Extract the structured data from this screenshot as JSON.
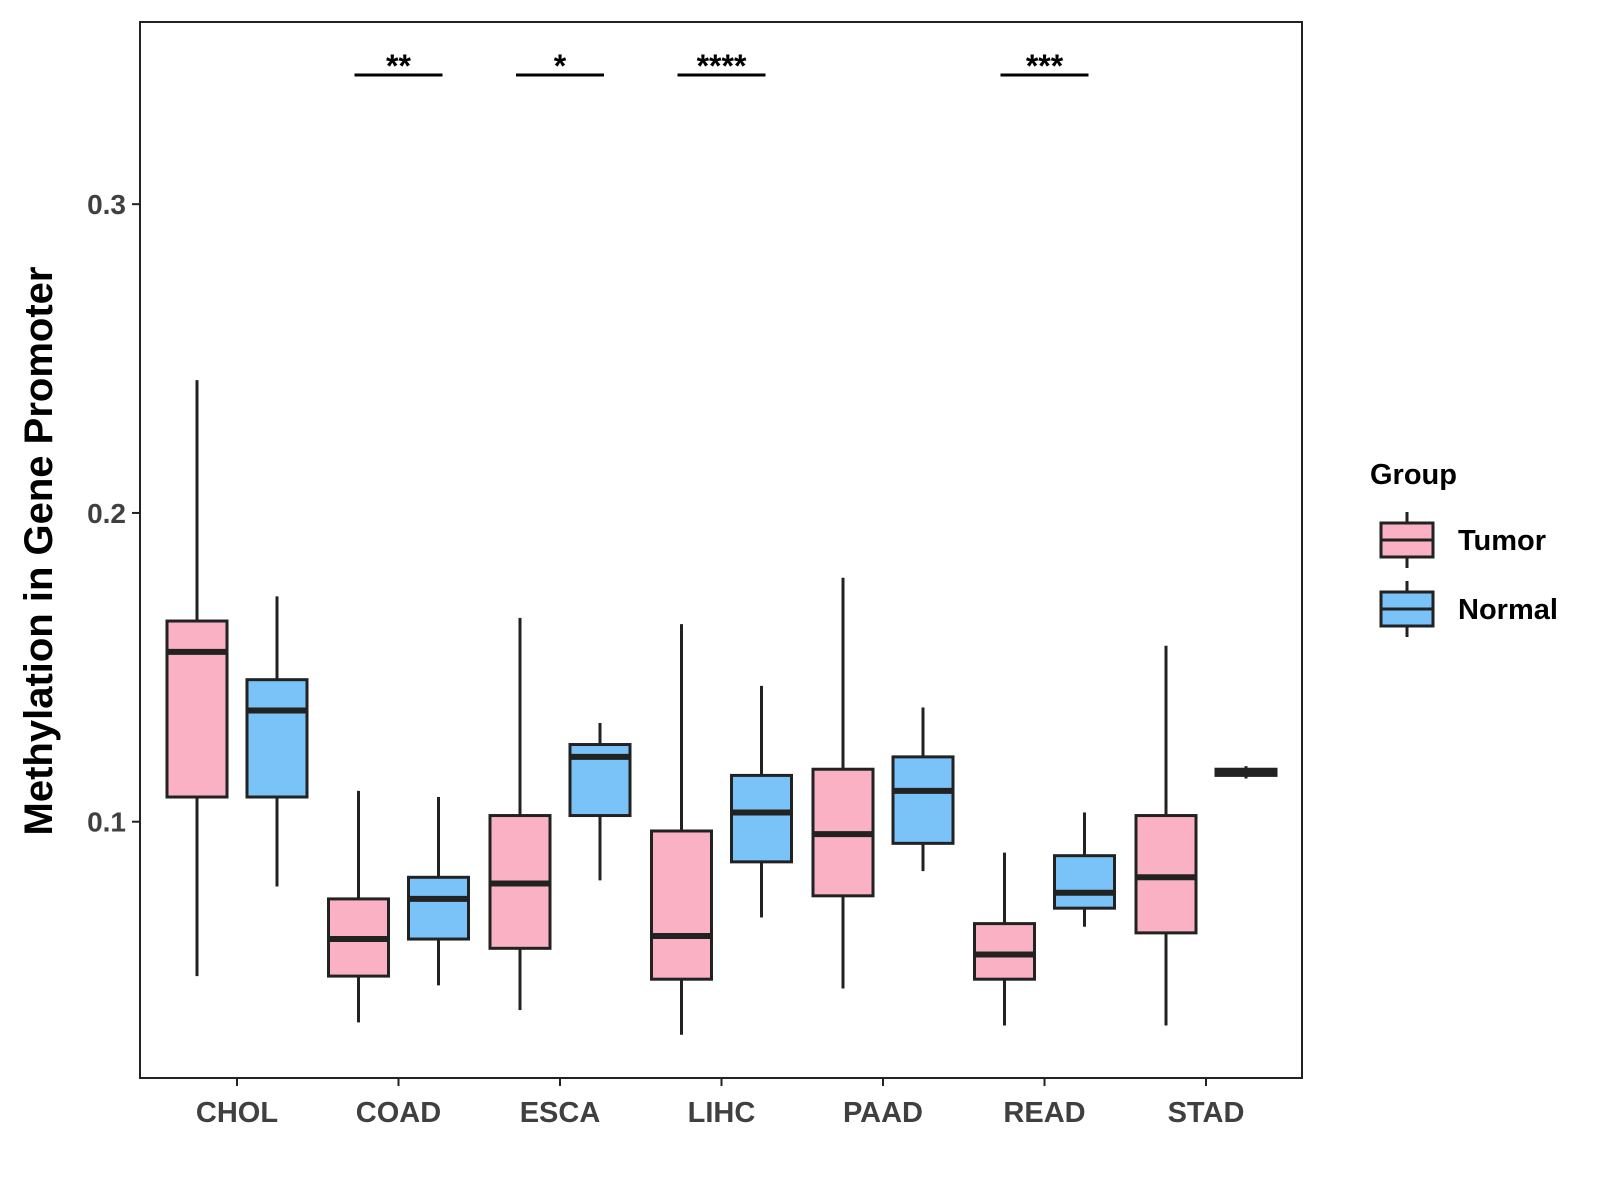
{
  "chart_data": {
    "type": "boxplot",
    "title": "",
    "xlabel": "",
    "ylabel": "Methylation in Gene Promoter",
    "ylim": [
      0.017,
      0.359
    ],
    "yticks": [
      0.1,
      0.2,
      0.3
    ],
    "ytick_labels": [
      "0.1",
      "0.2",
      "0.3"
    ],
    "categories": [
      "CHOL",
      "COAD",
      "ESCA",
      "LIHC",
      "PAAD",
      "READ",
      "STAD"
    ],
    "grid": false,
    "legend": {
      "title": "Group",
      "position": "right",
      "entries": [
        {
          "name": "Tumor",
          "color": "#FBB1C4"
        },
        {
          "name": "Normal",
          "color": "#79C3F9"
        }
      ]
    },
    "series": [
      {
        "name": "Tumor",
        "color": "#FBB1C4",
        "boxes": [
          {
            "category": "CHOL",
            "min": 0.05,
            "q1": 0.108,
            "median": 0.155,
            "q3": 0.165,
            "max": 0.243
          },
          {
            "category": "COAD",
            "min": 0.035,
            "q1": 0.05,
            "median": 0.062,
            "q3": 0.075,
            "max": 0.11
          },
          {
            "category": "ESCA",
            "min": 0.039,
            "q1": 0.059,
            "median": 0.08,
            "q3": 0.102,
            "max": 0.166
          },
          {
            "category": "LIHC",
            "min": 0.031,
            "q1": 0.049,
            "median": 0.063,
            "q3": 0.097,
            "max": 0.164
          },
          {
            "category": "PAAD",
            "min": 0.046,
            "q1": 0.076,
            "median": 0.096,
            "q3": 0.117,
            "max": 0.179
          },
          {
            "category": "READ",
            "min": 0.034,
            "q1": 0.049,
            "median": 0.057,
            "q3": 0.067,
            "max": 0.09
          },
          {
            "category": "STAD",
            "min": 0.034,
            "q1": 0.064,
            "median": 0.082,
            "q3": 0.102,
            "max": 0.157
          }
        ]
      },
      {
        "name": "Normal",
        "color": "#79C3F9",
        "boxes": [
          {
            "category": "CHOL",
            "min": 0.079,
            "q1": 0.108,
            "median": 0.136,
            "q3": 0.146,
            "max": 0.173
          },
          {
            "category": "COAD",
            "min": 0.047,
            "q1": 0.062,
            "median": 0.075,
            "q3": 0.082,
            "max": 0.108
          },
          {
            "category": "ESCA",
            "min": 0.081,
            "q1": 0.102,
            "median": 0.121,
            "q3": 0.125,
            "max": 0.132
          },
          {
            "category": "LIHC",
            "min": 0.069,
            "q1": 0.087,
            "median": 0.103,
            "q3": 0.115,
            "max": 0.144
          },
          {
            "category": "PAAD",
            "min": 0.084,
            "q1": 0.093,
            "median": 0.11,
            "q3": 0.121,
            "max": 0.137
          },
          {
            "category": "READ",
            "min": 0.066,
            "q1": 0.072,
            "median": 0.077,
            "q3": 0.089,
            "max": 0.103
          },
          {
            "category": "STAD",
            "min": 0.114,
            "q1": 0.115,
            "median": 0.116,
            "q3": 0.117,
            "max": 0.118
          }
        ]
      }
    ],
    "significance": [
      {
        "category": "COAD",
        "label": "**"
      },
      {
        "category": "ESCA",
        "label": "*"
      },
      {
        "category": "LIHC",
        "label": "****"
      },
      {
        "category": "READ",
        "label": "***"
      }
    ]
  }
}
